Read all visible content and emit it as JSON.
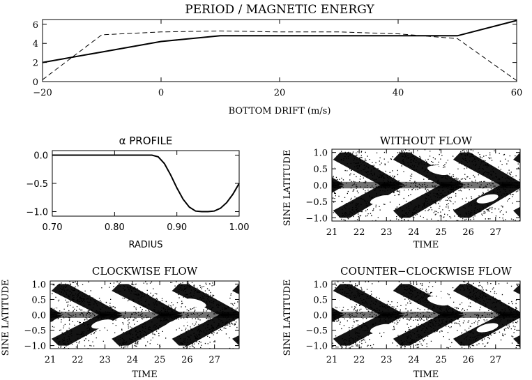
{
  "chart_data": [
    {
      "type": "line",
      "title": "PERIOD / MAGNETIC ENERGY",
      "xlabel": "BOTTOM DRIFT (m/s)",
      "ylabel": "",
      "xlim": [
        -20,
        60
      ],
      "ylim": [
        0,
        6.5
      ],
      "xticks": [
        "−20",
        "0",
        "20",
        "40",
        "60"
      ],
      "yticks": [
        "0",
        "2",
        "4",
        "6"
      ],
      "series": [
        {
          "name": "period",
          "style": "solid",
          "x": [
            -20,
            -10,
            0,
            10,
            20,
            30,
            40,
            50,
            60
          ],
          "y": [
            2.0,
            3.1,
            4.2,
            4.8,
            4.8,
            4.8,
            4.8,
            4.8,
            6.4
          ]
        },
        {
          "name": "magnetic energy",
          "style": "dashed",
          "x": [
            -20,
            -10,
            0,
            10,
            20,
            30,
            40,
            50,
            60
          ],
          "y": [
            0.2,
            4.9,
            5.2,
            5.3,
            5.2,
            5.2,
            5.0,
            4.5,
            0.1
          ]
        }
      ]
    },
    {
      "type": "line",
      "title": "α  PROFILE",
      "xlabel": "RADIUS",
      "ylabel": "",
      "xlim": [
        0.7,
        1.0
      ],
      "ylim": [
        -1.08,
        0.08
      ],
      "xticks": [
        "0.70",
        "0.80",
        "0.90",
        "1.00"
      ],
      "yticks": [
        "0.0",
        "−0.5",
        "−1.0"
      ],
      "series": [
        {
          "name": "alpha",
          "style": "solid",
          "x": [
            0.7,
            0.75,
            0.8,
            0.85,
            0.86,
            0.87,
            0.88,
            0.89,
            0.9,
            0.91,
            0.92,
            0.93,
            0.94,
            0.95,
            0.96,
            0.97,
            0.98,
            0.99,
            1.0
          ],
          "y": [
            0.0,
            0.0,
            0.0,
            0.0,
            0.0,
            -0.03,
            -0.15,
            -0.35,
            -0.58,
            -0.78,
            -0.92,
            -0.99,
            -1.0,
            -1.0,
            -0.99,
            -0.94,
            -0.84,
            -0.69,
            -0.5
          ]
        }
      ]
    },
    {
      "type": "heatmap",
      "title": "WITHOUT FLOW",
      "xlabel": "TIME",
      "ylabel": "SINE LATITUDE",
      "xlim": [
        21,
        27.9
      ],
      "ylim": [
        -1.1,
        1.1
      ],
      "xticks": [
        "21",
        "22",
        "23",
        "24",
        "25",
        "26",
        "27"
      ],
      "yticks": [
        "1.0",
        "0.5",
        "0.0",
        "−0.5",
        "−1.0"
      ],
      "flow": 0
    },
    {
      "type": "heatmap",
      "title": "CLOCKWISE FLOW",
      "xlabel": "TIME",
      "ylabel": "SINE LATITUDE",
      "xlim": [
        21,
        27.9
      ],
      "ylim": [
        -1.1,
        1.1
      ],
      "xticks": [
        "21",
        "22",
        "23",
        "24",
        "25",
        "26",
        "27"
      ],
      "yticks": [
        "1.0",
        "0.5",
        "0.0",
        "−0.5",
        "−1.0"
      ],
      "flow": 1
    },
    {
      "type": "heatmap",
      "title": "COUNTER−CLOCKWISE FLOW",
      "xlabel": "TIME",
      "ylabel": "SINE LATITUDE",
      "xlim": [
        21,
        27.9
      ],
      "ylim": [
        -1.1,
        1.1
      ],
      "xticks": [
        "21",
        "22",
        "23",
        "24",
        "25",
        "26",
        "27"
      ],
      "yticks": [
        "1.0",
        "0.5",
        "0.0",
        "−0.5",
        "−1.0"
      ],
      "flow": -1
    }
  ],
  "colors": {
    "ink": "#000000",
    "background": "#ffffff"
  }
}
